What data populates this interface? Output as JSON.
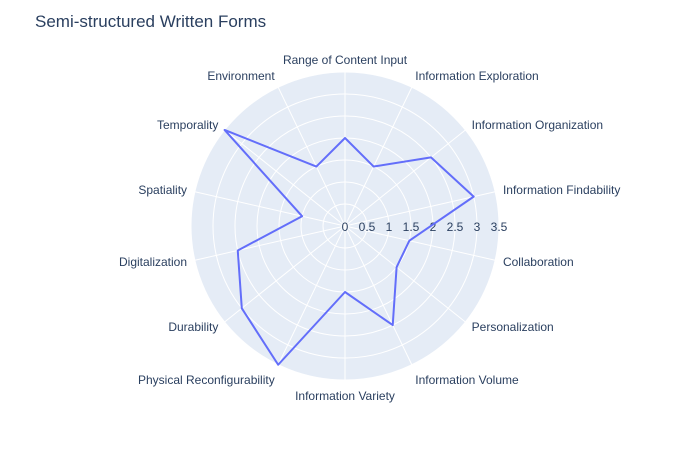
{
  "chart_data": {
    "type": "radar",
    "title": "Semi-structured Written Forms",
    "categories": [
      "Range of Content Input",
      "Information Exploration",
      "Information Organization",
      "Information Findability",
      "Collaboration",
      "Personalization",
      "Information Volume",
      "Information Variety",
      "Physical Reconfigurability",
      "Durability",
      "Digitalization",
      "Spatiality",
      "Temporality",
      "Environment"
    ],
    "series": [
      {
        "values": [
          2,
          1.5,
          2.5,
          3,
          1.5,
          1.5,
          2.5,
          1.5,
          3.5,
          3,
          2.5,
          1,
          3.5,
          1.5
        ]
      }
    ],
    "radial_range": [
      0,
      3.5
    ],
    "radial_ticks": [
      "0",
      "0.5",
      "1",
      "1.5",
      "2",
      "2.5",
      "3",
      "3.5"
    ],
    "line_color": "#636efa",
    "background_color": "#e5ecf6",
    "grid": true
  }
}
